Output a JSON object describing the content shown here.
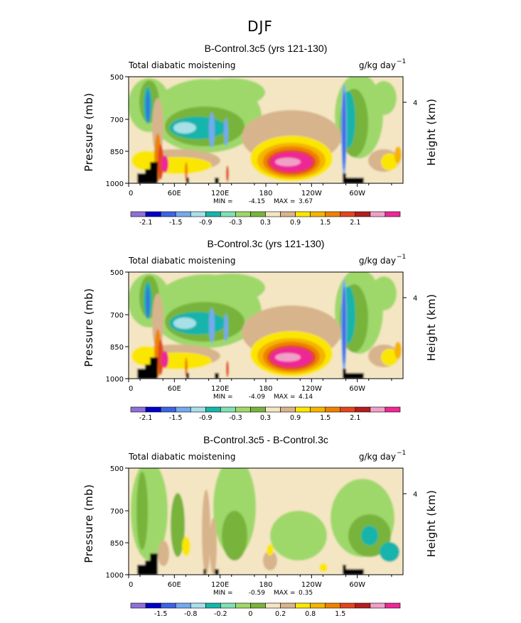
{
  "figure_title": "DJF",
  "chart_data": [
    {
      "type": "heatmap",
      "title": "B-Control.3c5 (yrs 121-130)",
      "subtitle_left": "Total diabatic moistening",
      "units": "g/kg day",
      "units_exp": "−1",
      "ylabel": "Pressure (mb)",
      "ylabel_right": "Height (km)",
      "x_ticks": [
        "0",
        "60E",
        "120E",
        "180",
        "120W",
        "60W"
      ],
      "y_ticks": [
        "500",
        "700",
        "850",
        "1000"
      ],
      "y_right_ticks": [
        "4"
      ],
      "min_label": "MIN =",
      "min_value": "-4.15",
      "max_label": "MAX =",
      "max_value": "3.67",
      "colorbar": {
        "colors": [
          "#8f70d8",
          "#0000c8",
          "#3c64e6",
          "#74aaf0",
          "#a8e0e8",
          "#18b4aa",
          "#80e0b4",
          "#9fd86a",
          "#78b43a",
          "#f4e6c2",
          "#d7b48c",
          "#fae600",
          "#f5b400",
          "#ee8200",
          "#e2461e",
          "#b41e1e",
          "#f0a0c8",
          "#ee2896"
        ],
        "labels": [
          "-2.1",
          "-1.5",
          "-0.9",
          "-0.3",
          "0.3",
          "0.9",
          "1.5",
          "2.1"
        ],
        "label_slots": [
          1,
          3,
          5,
          7,
          9,
          11,
          13,
          15
        ]
      }
    },
    {
      "type": "heatmap",
      "title": "B-Control.3c (yrs 121-130)",
      "subtitle_left": "Total diabatic moistening",
      "units": "g/kg day",
      "units_exp": "−1",
      "ylabel": "Pressure (mb)",
      "ylabel_right": "Height (km)",
      "x_ticks": [
        "0",
        "60E",
        "120E",
        "180",
        "120W",
        "60W"
      ],
      "y_ticks": [
        "500",
        "700",
        "850",
        "1000"
      ],
      "y_right_ticks": [
        "4"
      ],
      "min_label": "MIN =",
      "min_value": "-4.09",
      "max_label": "MAX =",
      "max_value": "4.14",
      "colorbar": {
        "colors": [
          "#8f70d8",
          "#0000c8",
          "#3c64e6",
          "#74aaf0",
          "#a8e0e8",
          "#18b4aa",
          "#80e0b4",
          "#9fd86a",
          "#78b43a",
          "#f4e6c2",
          "#d7b48c",
          "#fae600",
          "#f5b400",
          "#ee8200",
          "#e2461e",
          "#b41e1e",
          "#f0a0c8",
          "#ee2896"
        ],
        "labels": [
          "-2.1",
          "-1.5",
          "-0.9",
          "-0.3",
          "0.3",
          "0.9",
          "1.5",
          "2.1"
        ],
        "label_slots": [
          1,
          3,
          5,
          7,
          9,
          11,
          13,
          15
        ]
      }
    },
    {
      "type": "heatmap",
      "title": "B-Control.3c5 - B-Control.3c",
      "subtitle_left": "Total diabatic moistening",
      "units": "g/kg day",
      "units_exp": "−1",
      "ylabel": "Pressure (mb)",
      "ylabel_right": "Height (km)",
      "x_ticks": [
        "0",
        "60E",
        "120E",
        "180",
        "120W",
        "60W"
      ],
      "y_ticks": [
        "500",
        "700",
        "850",
        "1000"
      ],
      "y_right_ticks": [
        "4"
      ],
      "min_label": "MIN =",
      "min_value": "-0.59",
      "max_label": "MAX =",
      "max_value": "0.35",
      "colorbar": {
        "colors": [
          "#8f70d8",
          "#0000c8",
          "#3c64e6",
          "#74aaf0",
          "#a8e0e8",
          "#18b4aa",
          "#80e0b4",
          "#9fd86a",
          "#78b43a",
          "#f4e6c2",
          "#d7b48c",
          "#fae600",
          "#f5b400",
          "#ee8200",
          "#e2461e",
          "#b41e1e",
          "#f0a0c8",
          "#ee2896"
        ],
        "labels": [
          "-1.5",
          "-0.8",
          "-0.2",
          "0",
          "0.2",
          "0.8",
          "1.5"
        ],
        "label_slots": [
          2,
          4,
          6,
          8,
          10,
          12,
          14
        ]
      }
    }
  ]
}
